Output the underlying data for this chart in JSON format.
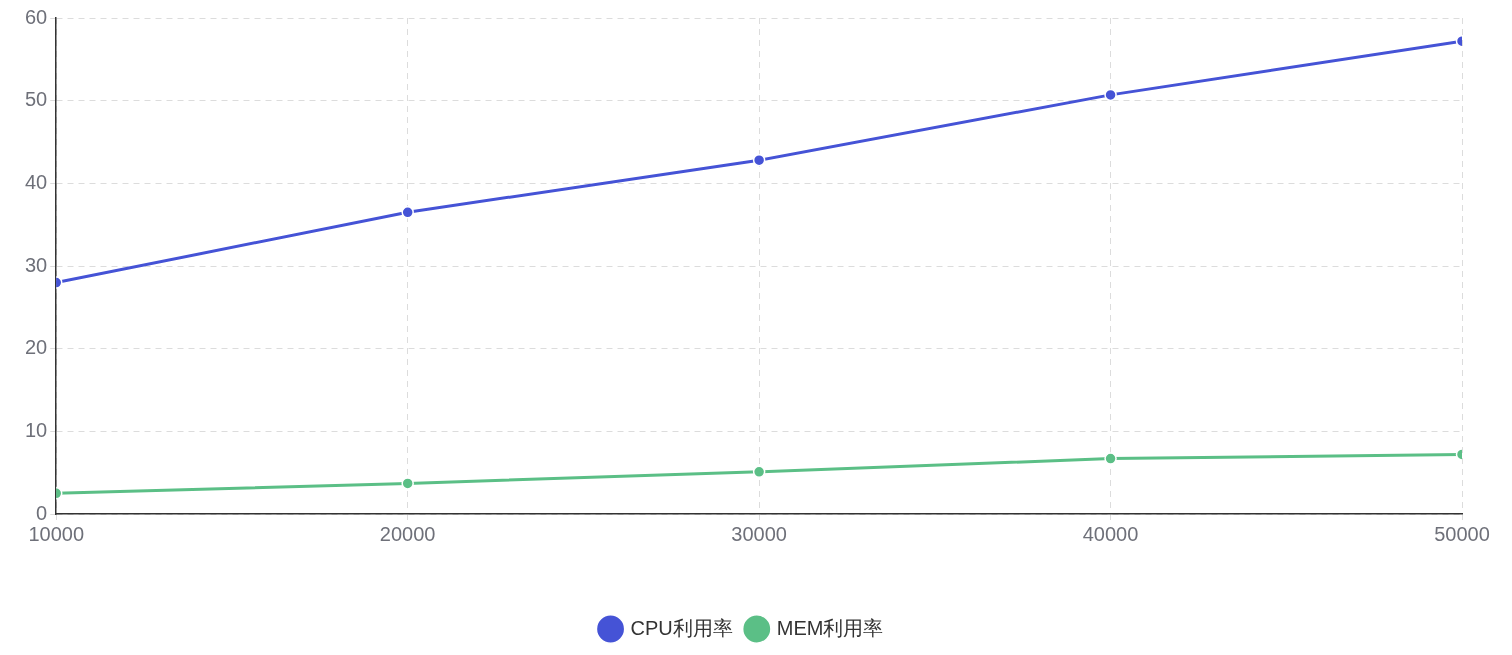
{
  "chart_data": {
    "type": "line",
    "x": [
      10000,
      20000,
      30000,
      40000,
      50000
    ],
    "series": [
      {
        "name": "CPU利用率",
        "color": "#4553d6",
        "values": [
          28,
          36.5,
          42.8,
          50.7,
          57.2
        ]
      },
      {
        "name": "MEM利用率",
        "color": "#5bbf86",
        "values": [
          2.5,
          3.7,
          5.1,
          6.7,
          7.2
        ]
      }
    ],
    "xlim": [
      10000,
      50000
    ],
    "xticks": [
      10000,
      20000,
      30000,
      40000,
      50000
    ],
    "ylim": [
      0,
      60
    ],
    "yticks": [
      0,
      10,
      20,
      30,
      40,
      50,
      60
    ],
    "grid": true,
    "legend": "bottom",
    "marker": "circle",
    "line_style": "solid"
  }
}
